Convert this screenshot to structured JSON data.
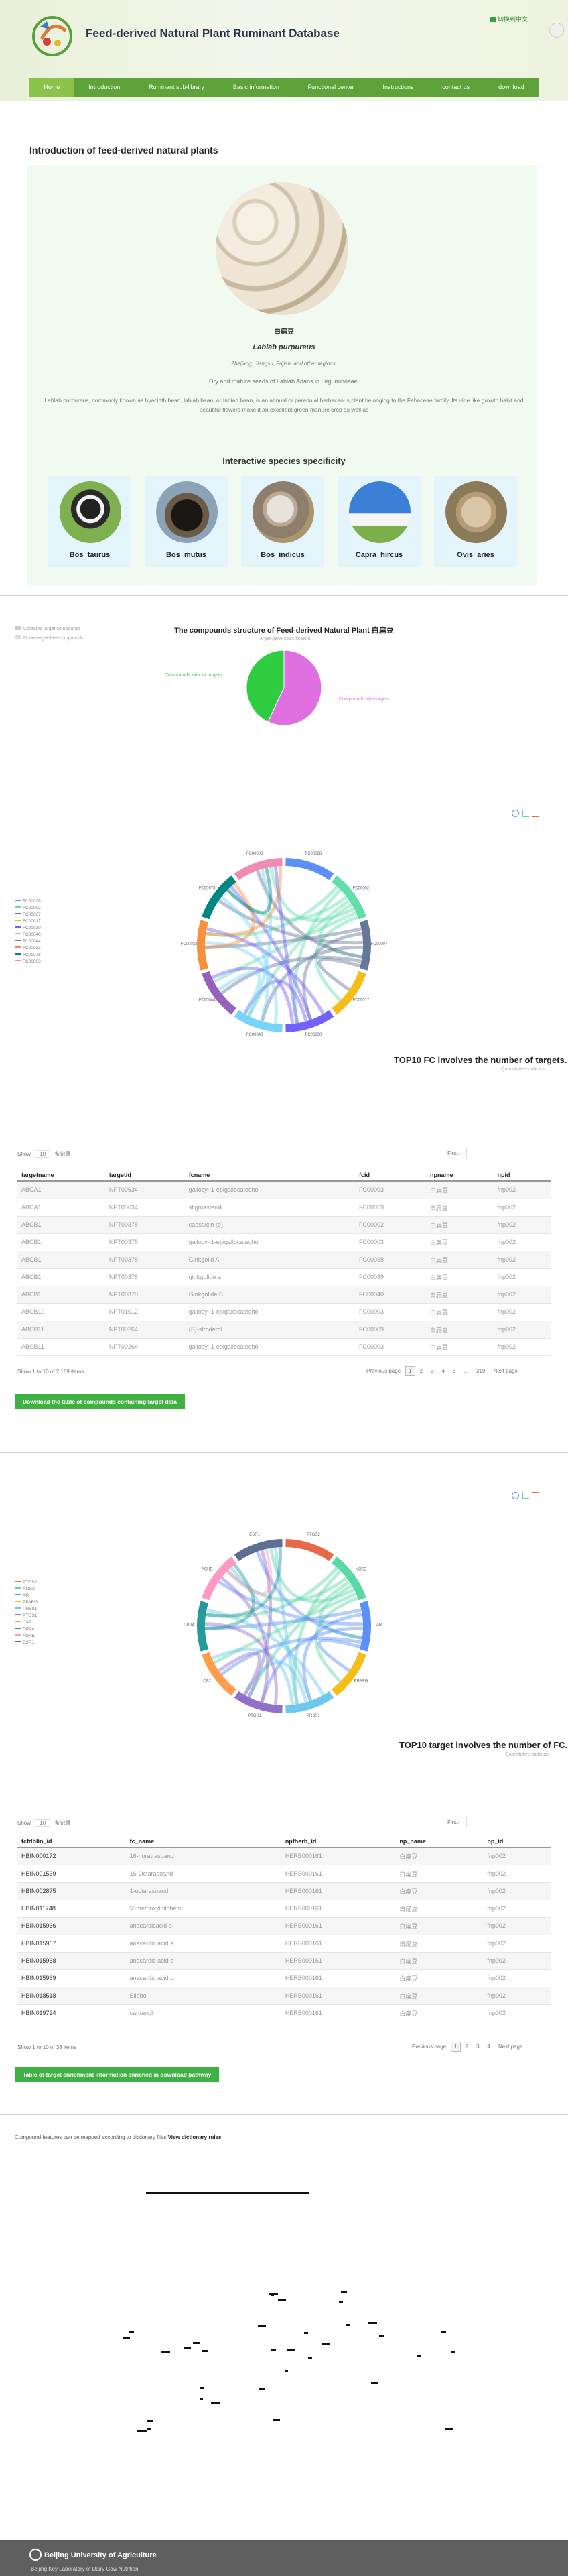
{
  "header": {
    "site_title": "Feed-derived Natural Plant Ruminant Database",
    "lang_switch": "切换到中文",
    "nav": [
      "Home",
      "Introduction",
      "Ruminant sub-library",
      "Basic information",
      "Functional center",
      "Instructions",
      "contact us",
      "download"
    ]
  },
  "intro": {
    "heading": "Introduction of feed-derived natural plants",
    "plant_cn": "白扁豆",
    "plant_latin": "Lablab purpureus",
    "regions": "Zhejiang, Jiangsu, Fujian, and other regions.",
    "part": "Dry and mature seeds of Lablab Adans in Leguminosae.",
    "description": "Lablab purpureus, commonly known as hyacinth bean, lablab bean, or Indian bean, is an annual or perennial herbaceous plant belonging to the Fabaceae family. Its vine like growth habit and beautiful flowers make it an excellent green manure crop as well as",
    "species_heading": "Interactive species specificity",
    "species": [
      "Bos_taurus",
      "Bos_mutus",
      "Bos_indicus",
      "Capra_hircus",
      "Ovis_aries"
    ]
  },
  "pie": {
    "legend": [
      "Contains target compounds",
      "None-target-free compounds"
    ],
    "title": "The compounds structure of Feed-derived Natural Plant 白扁豆",
    "subtitle": "Target-gene classification",
    "label_a": "Compounds without targets",
    "label_b": "Compounds with targets",
    "colors": {
      "a": "#2ecc40",
      "b": "#e070e0"
    },
    "chart_data": {
      "type": "pie",
      "labels": [
        "Compounds without targets",
        "Compounds with targets"
      ],
      "values": [
        43,
        57
      ]
    }
  },
  "chord1": {
    "title": "TOP10 FC involves the number of targets.",
    "subtitle": "Quantitative statistics",
    "legend": [
      "FC00028",
      "FC00002",
      "FC00007",
      "FC00017",
      "FC00030",
      "FC00040",
      "FC00044",
      "FC00033",
      "FC00078",
      "FC00003"
    ],
    "colors": [
      "#5b8ff9",
      "#61ddaa",
      "#65789b",
      "#f6bd16",
      "#7262fd",
      "#78d3f8",
      "#9661bc",
      "#f6903d",
      "#008685",
      "#f08bb4"
    ]
  },
  "table1": {
    "show_label": "Show",
    "show_count": "10",
    "show_suffix": "条记录",
    "find_label": "Find:",
    "columns": [
      "targetname",
      "targetid",
      "fcname",
      "fcid",
      "npname",
      "npid"
    ],
    "rows": [
      [
        "ABCA1",
        "NPT00634",
        "gallocyl-1-epigallocatechol",
        "FC00003",
        "白扁豆",
        "fnp002"
      ],
      [
        "ABCA1",
        "NPT00634",
        "stigmasterol",
        "FC00059",
        "白扁豆",
        "fnp002"
      ],
      [
        "ABCB1",
        "NPT00378",
        "capsaicin (e)",
        "FC00002",
        "白扁豆",
        "fnp002"
      ],
      [
        "ABCB1",
        "NPT00378",
        "gallocyl-1-epigallocatechol",
        "FC00003",
        "白扁豆",
        "fnp002"
      ],
      [
        "ABCB1",
        "NPT00378",
        "Ginkgolid A",
        "FC00038",
        "白扁豆",
        "fnp002"
      ],
      [
        "ABCB1",
        "NPT00378",
        "ginkgolide a",
        "FC00039",
        "白扁豆",
        "fnp002"
      ],
      [
        "ABCB1",
        "NPT00378",
        "Ginkgolide B",
        "FC00040",
        "白扁豆",
        "fnp002"
      ],
      [
        "ABCB10",
        "NPT01012",
        "gallocyl-1-epigallocatechol",
        "FC00003",
        "白扁豆",
        "fnp002"
      ],
      [
        "ABCB11",
        "NPT00264",
        "(S)-stroderol",
        "FC00009",
        "白扁豆",
        "fnp002"
      ],
      [
        "ABCB11",
        "NPT00264",
        "gallocyl-1-epigallocatechol",
        "FC00003",
        "白扁豆",
        "fnp002"
      ]
    ],
    "info": "Show 1 to 10 of 2,189 items",
    "pager": [
      "Previous page",
      "1",
      "2",
      "3",
      "4",
      "5",
      "...",
      "219",
      "Next page"
    ],
    "download": "Download the table of compounds containing target data"
  },
  "chord2": {
    "title": "TOP10 target involves the number of FC.",
    "subtitle": "Quantitative statistics",
    "legend": [
      "PTGS2",
      "NOS2",
      "AR",
      "PPARG",
      "PRSS1",
      "PTGS1",
      "CA2",
      "DPP4",
      "ACHE",
      "ESR1"
    ],
    "colors": [
      "#e8684a",
      "#5ad8a6",
      "#5b8ff9",
      "#f6bd16",
      "#6dc8ec",
      "#9270ca",
      "#ff9d4d",
      "#269a99",
      "#ff99c3",
      "#5d7092"
    ]
  },
  "table2": {
    "show_label": "Show",
    "show_count": "10",
    "show_suffix": "条记录",
    "find_label": "Find:",
    "columns": [
      "fcfdblin_id",
      "fc_name",
      "npfherb_id",
      "np_name",
      "np_id"
    ],
    "rows": [
      [
        "HBIN000172",
        "16-noratrasoand",
        "HERB000161",
        "白扁豆",
        "fnp002"
      ],
      [
        "HBIN001539",
        "16-Octarasoand",
        "HERB000161",
        "白扁豆",
        "fnp002"
      ],
      [
        "HBIN002875",
        "1-octarasoand",
        "HERB000161",
        "白扁豆",
        "fnp002"
      ],
      [
        "HBIN011748",
        "5'-methoxylbilobetin",
        "HERB000161",
        "白扁豆",
        "fnp002"
      ],
      [
        "HBIN015966",
        "anacardicacid d",
        "HERB000161",
        "白扁豆",
        "fnp002"
      ],
      [
        "HBIN015967",
        "anacardic acid a",
        "HERB000161",
        "白扁豆",
        "fnp002"
      ],
      [
        "HBIN015968",
        "anacardic acid b",
        "HERB000161",
        "白扁豆",
        "fnp002"
      ],
      [
        "HBIN015969",
        "anacardic acid c",
        "HERB000161",
        "白扁豆",
        "fnp002"
      ],
      [
        "HBIN018518",
        "Bilobol",
        "HERB000161",
        "白扁豆",
        "fnp002"
      ],
      [
        "HBIN019724",
        "cardanol",
        "HERB000161",
        "白扁豆",
        "fnp002"
      ]
    ],
    "info": "Show 1 to 10 of 38 items",
    "pager": [
      "Previous page",
      "1",
      "2",
      "3",
      "4",
      "Next page"
    ],
    "download": "Table of target enrichment information enriched in download pathway"
  },
  "note": {
    "text": "Compound features can be mapped according to dictionary files",
    "link": "View dictionary rules"
  },
  "footer": {
    "university": "Beijing University of Agriculture",
    "lab": "Beijing Key Laboratory of Dairy Cow Nutrition"
  }
}
